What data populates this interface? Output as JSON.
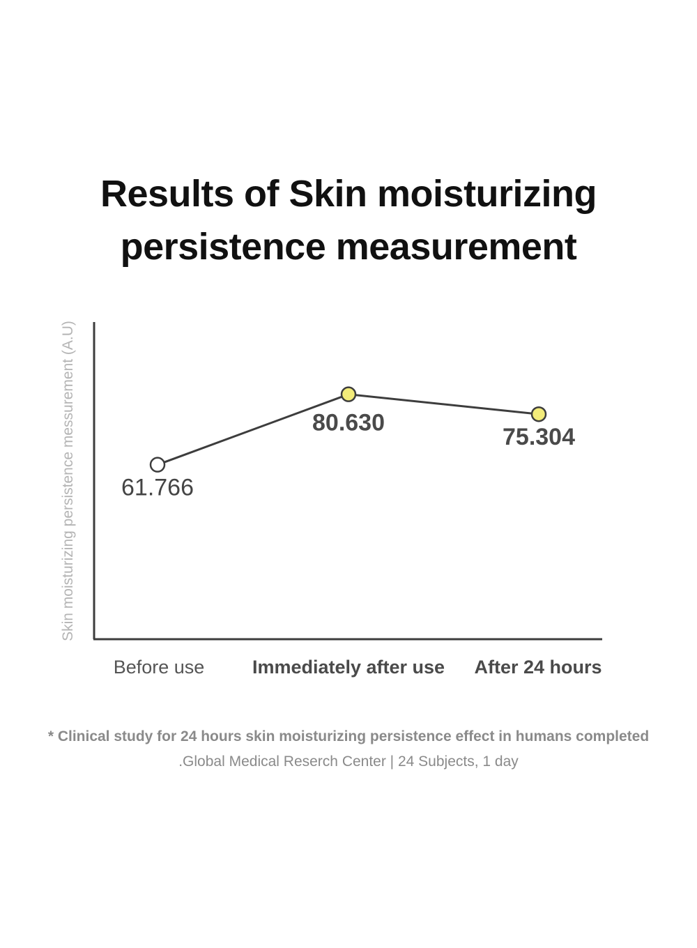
{
  "title_line1": "Results of Skin moisturizing",
  "title_line2": "persistence measurement",
  "chart_data": {
    "type": "line",
    "title": "Results of Skin moisturizing persistence measurement",
    "ylabel": "Skin moisturizing persistence messurement (A.U)",
    "xlabel": "",
    "categories": [
      "Before use",
      "Immediately after use",
      "After 24 hours"
    ],
    "values": [
      61.766,
      80.63,
      75.304
    ],
    "value_labels": [
      "61.766",
      "80.630",
      "75.304"
    ],
    "ylim": [
      15,
      100
    ],
    "grid": false,
    "colors": {
      "line": "#3d3d3d",
      "marker_before": "#ffffff",
      "marker_after": "#f3ec7a",
      "axis": "#3d3d3d"
    }
  },
  "footnote": {
    "main": "* Clinical study for 24 hours skin moisturizing persistence effect in humans completed",
    "sub": ".Global Medical Reserch Center | 24 Subjects, 1 day"
  }
}
